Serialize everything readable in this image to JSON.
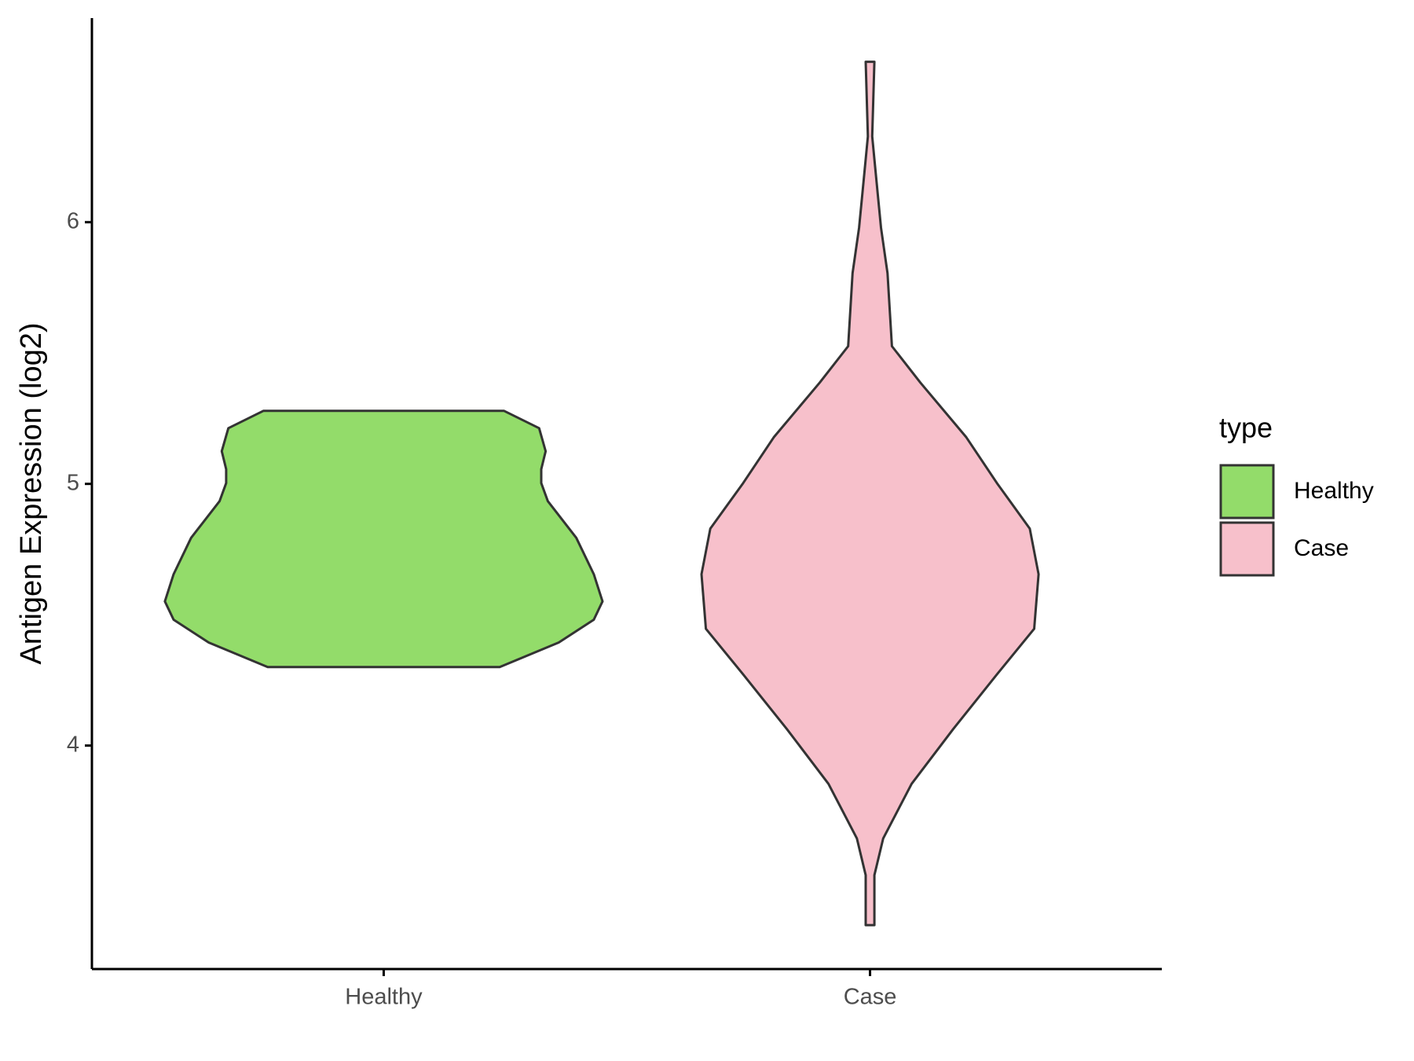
{
  "chart_data": {
    "type": "violin",
    "y_label": "Antigen Expression (log2)",
    "categories": [
      "Healthy",
      "Case"
    ],
    "legend_title": "type",
    "legend_position": "right",
    "ylim": [
      3.146,
      6.78
    ],
    "yticks": [
      4,
      5,
      6
    ],
    "series": [
      {
        "name": "Healthy",
        "color": "#93dc6a",
        "y": [
          5.279,
          5.213,
          5.125,
          5.056,
          5.003,
          4.934,
          4.794,
          4.655,
          4.551,
          4.481,
          4.394,
          4.3
        ],
        "width": [
          0.55,
          0.71,
          0.74,
          0.72,
          0.72,
          0.75,
          0.88,
          0.96,
          1,
          0.96,
          0.8,
          0.53
        ]
      },
      {
        "name": "Case",
        "color": "#f7c0cb",
        "y": [
          6.613,
          6.328,
          6.153,
          5.979,
          5.805,
          5.526,
          5.387,
          5.178,
          5.003,
          4.829,
          4.655,
          4.446,
          4.272,
          4.063,
          3.854,
          3.645,
          3.505,
          3.314
        ],
        "width": [
          0.02,
          0.01,
          0.03,
          0.05,
          0.08,
          0.1,
          0.23,
          0.44,
          0.58,
          0.73,
          0.77,
          0.75,
          0.58,
          0.38,
          0.19,
          0.06,
          0.02,
          0.02
        ]
      }
    ]
  }
}
